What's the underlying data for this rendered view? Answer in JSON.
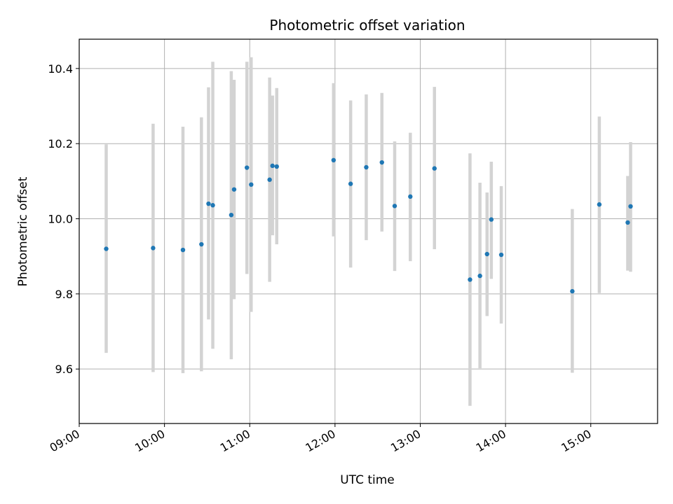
{
  "chart_data": {
    "type": "scatter",
    "title": "Photometric offset variation",
    "xlabel": "UTC time",
    "ylabel": "Photometric offset",
    "x_axis": {
      "type": "time",
      "xlim": [
        "09:00",
        "15:47"
      ],
      "ticks": [
        "09:00",
        "10:00",
        "11:00",
        "12:00",
        "13:00",
        "14:00",
        "15:00"
      ]
    },
    "y_axis": {
      "ylim": [
        9.455,
        10.478
      ],
      "ticks": [
        "9.6",
        "9.8",
        "10.0",
        "10.2",
        "10.4"
      ]
    },
    "grid": true,
    "colors": {
      "point": "#1f77b4",
      "errorbar": "#d3d3d3",
      "grid": "#b0b0b0"
    },
    "points": [
      {
        "x": "09:19",
        "y": 9.92,
        "ylow": 9.643,
        "yhigh": 10.198
      },
      {
        "x": "09:52",
        "y": 9.922,
        "ylow": 9.592,
        "yhigh": 10.253
      },
      {
        "x": "10:13",
        "y": 9.917,
        "ylow": 9.589,
        "yhigh": 10.245
      },
      {
        "x": "10:26",
        "y": 9.932,
        "ylow": 9.594,
        "yhigh": 10.27
      },
      {
        "x": "10:31",
        "y": 10.04,
        "ylow": 9.732,
        "yhigh": 10.35
      },
      {
        "x": "10:34",
        "y": 10.036,
        "ylow": 9.654,
        "yhigh": 10.418
      },
      {
        "x": "10:47",
        "y": 10.01,
        "ylow": 9.626,
        "yhigh": 10.393
      },
      {
        "x": "10:49",
        "y": 10.078,
        "ylow": 9.786,
        "yhigh": 10.37
      },
      {
        "x": "10:58",
        "y": 10.136,
        "ylow": 9.853,
        "yhigh": 10.418
      },
      {
        "x": "11:01",
        "y": 10.091,
        "ylow": 9.752,
        "yhigh": 10.43
      },
      {
        "x": "11:14",
        "y": 10.104,
        "ylow": 9.832,
        "yhigh": 10.376
      },
      {
        "x": "11:16",
        "y": 10.141,
        "ylow": 9.956,
        "yhigh": 10.328
      },
      {
        "x": "11:19",
        "y": 10.139,
        "ylow": 9.932,
        "yhigh": 10.348
      },
      {
        "x": "11:59",
        "y": 10.156,
        "ylow": 9.953,
        "yhigh": 10.361
      },
      {
        "x": "12:11",
        "y": 10.093,
        "ylow": 9.87,
        "yhigh": 10.315
      },
      {
        "x": "12:22",
        "y": 10.137,
        "ylow": 9.943,
        "yhigh": 10.331
      },
      {
        "x": "12:33",
        "y": 10.15,
        "ylow": 9.966,
        "yhigh": 10.335
      },
      {
        "x": "12:42",
        "y": 10.034,
        "ylow": 9.861,
        "yhigh": 10.206
      },
      {
        "x": "12:53",
        "y": 10.059,
        "ylow": 9.887,
        "yhigh": 10.229
      },
      {
        "x": "13:10",
        "y": 10.134,
        "ylow": 9.919,
        "yhigh": 10.351
      },
      {
        "x": "13:35",
        "y": 9.838,
        "ylow": 9.502,
        "yhigh": 10.174
      },
      {
        "x": "13:42",
        "y": 9.848,
        "ylow": 9.602,
        "yhigh": 10.096
      },
      {
        "x": "13:47",
        "y": 9.906,
        "ylow": 9.741,
        "yhigh": 10.07
      },
      {
        "x": "13:50",
        "y": 9.998,
        "ylow": 9.84,
        "yhigh": 10.152
      },
      {
        "x": "13:57",
        "y": 9.904,
        "ylow": 9.721,
        "yhigh": 10.087
      },
      {
        "x": "14:47",
        "y": 9.807,
        "ylow": 9.59,
        "yhigh": 10.026
      },
      {
        "x": "15:06",
        "y": 10.038,
        "ylow": 9.802,
        "yhigh": 10.272
      },
      {
        "x": "15:26",
        "y": 9.99,
        "ylow": 9.862,
        "yhigh": 10.114
      },
      {
        "x": "15:28",
        "y": 10.033,
        "ylow": 9.859,
        "yhigh": 10.204
      }
    ]
  }
}
